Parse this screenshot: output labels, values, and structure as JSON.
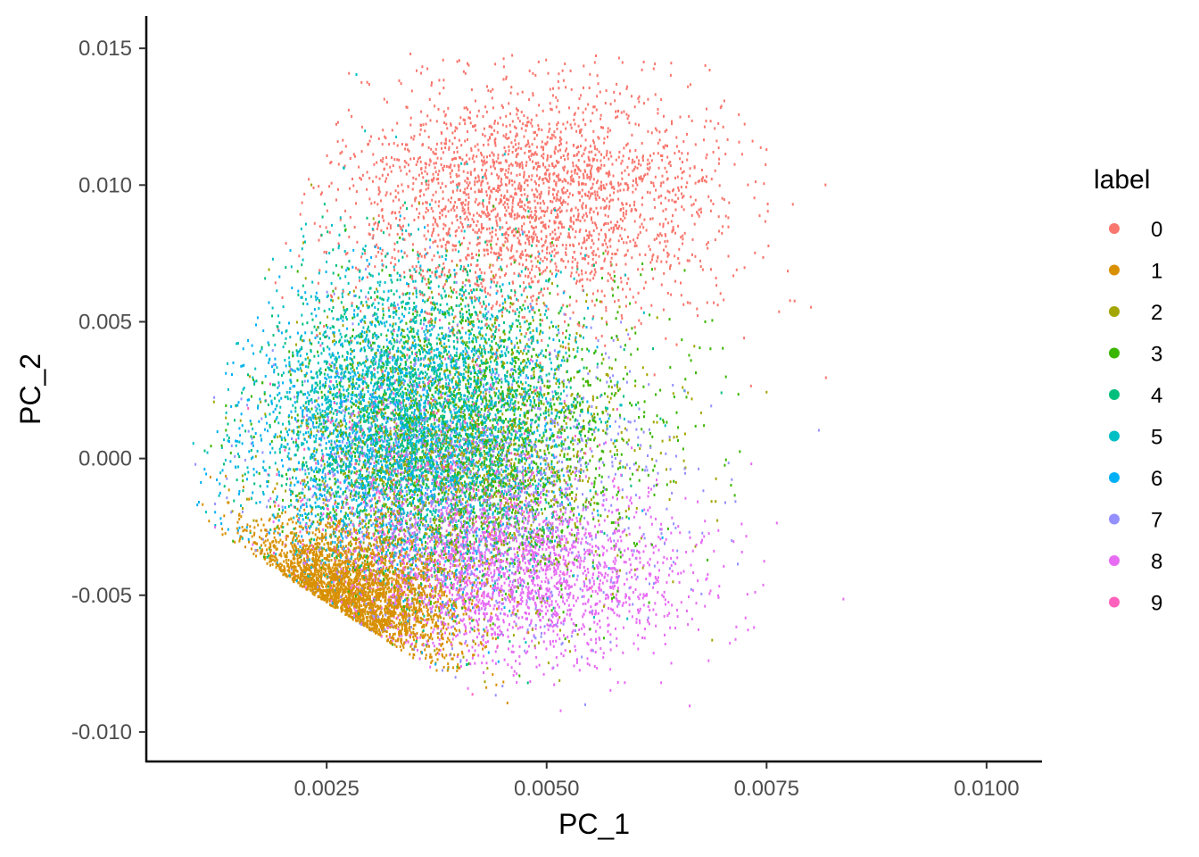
{
  "chart_data": {
    "type": "scatter",
    "title": "",
    "xlabel": "PC_1",
    "ylabel": "PC_2",
    "xlim": [
      0.00045,
      0.01063
    ],
    "ylim": [
      -0.01108,
      0.01618
    ],
    "x_ticks": [
      {
        "value": 0.0025,
        "label": "0.0025"
      },
      {
        "value": 0.005,
        "label": "0.0050"
      },
      {
        "value": 0.0075,
        "label": "0.0075"
      },
      {
        "value": 0.01,
        "label": "0.0100"
      }
    ],
    "y_ticks": [
      {
        "value": -0.01,
        "label": "-0.010"
      },
      {
        "value": -0.005,
        "label": "-0.005"
      },
      {
        "value": 0.0,
        "label": "0.000"
      },
      {
        "value": 0.005,
        "label": "0.005"
      },
      {
        "value": 0.01,
        "label": "0.010"
      },
      {
        "value": 0.015,
        "label": "0.015"
      }
    ],
    "grid": false,
    "legend": {
      "title": "label",
      "position": "right",
      "entries": [
        {
          "label": "0",
          "color": "#F8766D"
        },
        {
          "label": "1",
          "color": "#D89000"
        },
        {
          "label": "2",
          "color": "#A3A500"
        },
        {
          "label": "3",
          "color": "#39B600"
        },
        {
          "label": "4",
          "color": "#00BF7D"
        },
        {
          "label": "5",
          "color": "#00BFC4"
        },
        {
          "label": "6",
          "color": "#00B0F6"
        },
        {
          "label": "7",
          "color": "#9590FF"
        },
        {
          "label": "8",
          "color": "#E76BF3"
        },
        {
          "label": "9",
          "color": "#FF62BC"
        }
      ]
    },
    "series": [
      {
        "name": "0",
        "color": "#F8766D",
        "center": [
          0.0048,
          0.0095
        ],
        "spread": [
          0.0011,
          0.0022
        ],
        "count": 2600
      },
      {
        "name": "1",
        "color": "#D89000",
        "center": [
          0.0024,
          -0.0055
        ],
        "spread": [
          0.0007,
          0.0014
        ],
        "count": 2800
      },
      {
        "name": "2",
        "color": "#A3A500",
        "center": [
          0.004,
          0.0002
        ],
        "spread": [
          0.001,
          0.0028
        ],
        "count": 1500
      },
      {
        "name": "3",
        "color": "#39B600",
        "center": [
          0.0042,
          0.0006
        ],
        "spread": [
          0.001,
          0.0028
        ],
        "count": 1800
      },
      {
        "name": "4",
        "color": "#00BF7D",
        "center": [
          0.0036,
          0.0012
        ],
        "spread": [
          0.0009,
          0.0029
        ],
        "count": 1800
      },
      {
        "name": "5",
        "color": "#00BFC4",
        "center": [
          0.0035,
          0.002
        ],
        "spread": [
          0.0009,
          0.0028
        ],
        "count": 2000
      },
      {
        "name": "6",
        "color": "#00B0F6",
        "center": [
          0.0032,
          0.0005
        ],
        "spread": [
          0.0009,
          0.0028
        ],
        "count": 1600
      },
      {
        "name": "7",
        "color": "#9590FF",
        "center": [
          0.004,
          -0.001
        ],
        "spread": [
          0.0011,
          0.0027
        ],
        "count": 1600
      },
      {
        "name": "8",
        "color": "#E76BF3",
        "center": [
          0.0046,
          -0.0042
        ],
        "spread": [
          0.001,
          0.0016
        ],
        "count": 2200
      },
      {
        "name": "9",
        "color": "#FF62BC",
        "center": [
          0.0036,
          -0.001
        ],
        "spread": [
          0.0008,
          0.0022
        ],
        "count": 600
      }
    ]
  }
}
